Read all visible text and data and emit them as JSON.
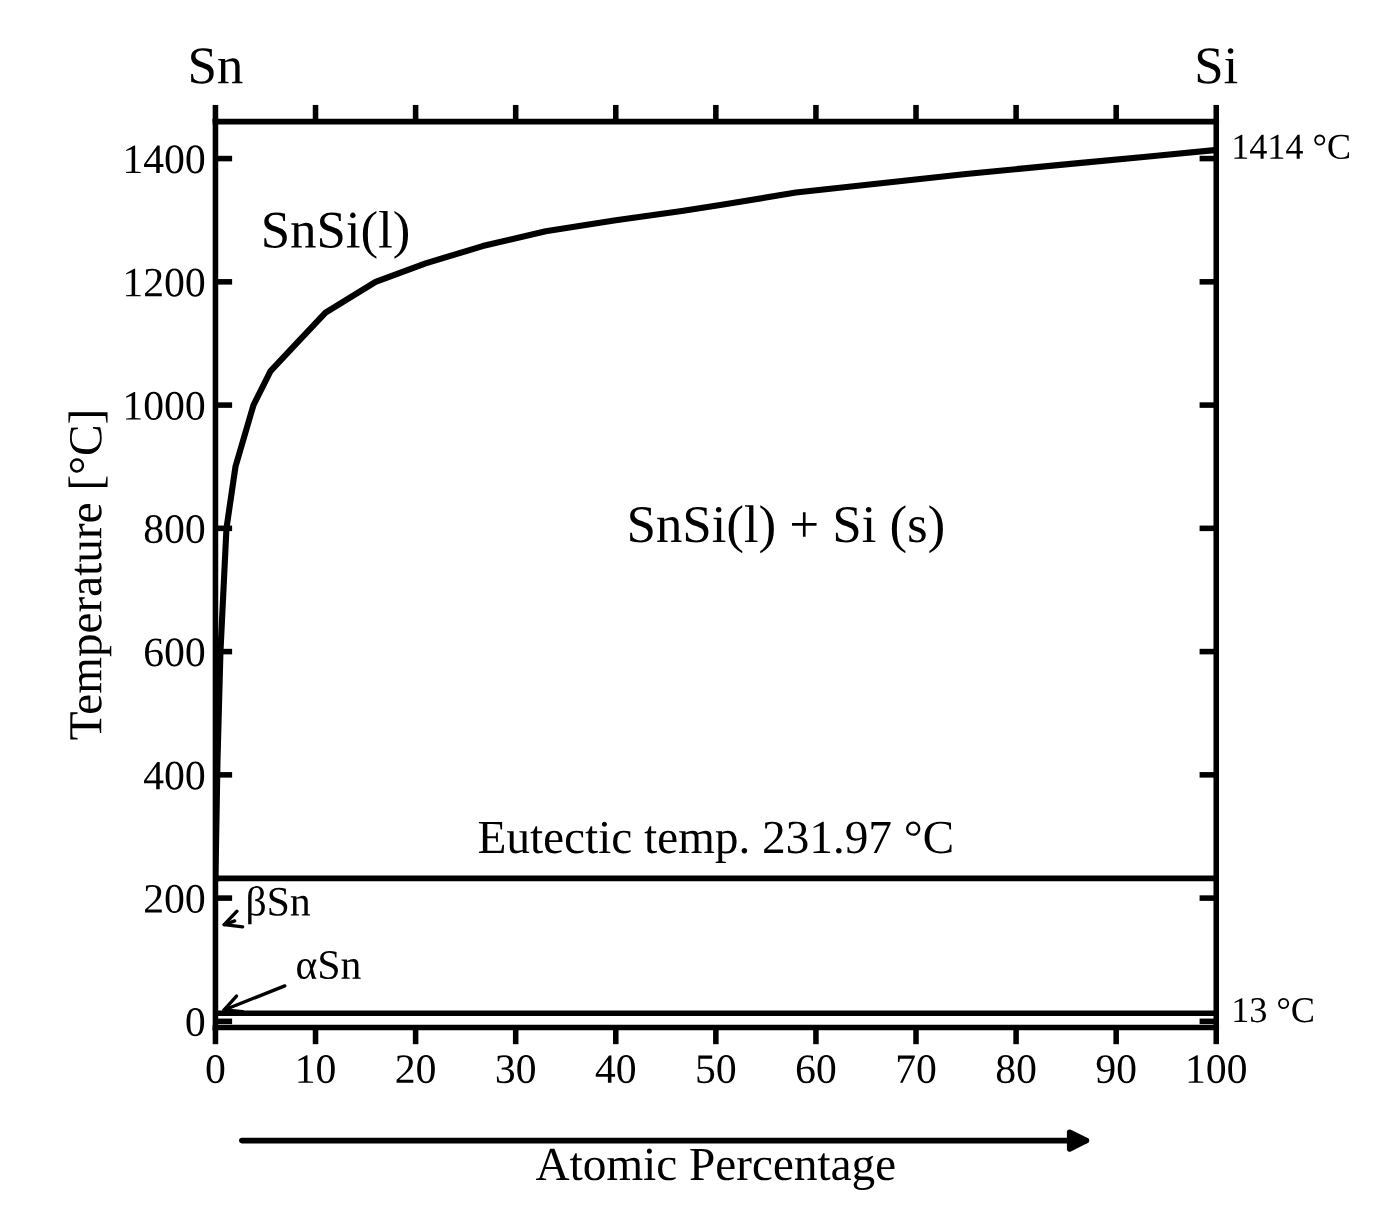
{
  "chart_data": {
    "type": "line",
    "xlabel": "Atomic Percentage",
    "ylabel": "Temperature [°C]",
    "x": [
      0,
      0.2,
      0.5,
      1.1,
      2,
      3.8,
      5.5,
      8.1,
      11,
      16,
      21,
      26.7,
      33,
      40,
      46.6,
      50.6,
      58,
      66.5,
      75,
      86.5,
      93,
      100
    ],
    "series": [
      {
        "color": "#000000",
        "values": [
          232,
          420,
          600,
          800,
          900,
          1000,
          1055,
          1100,
          1150,
          1200,
          1230,
          1258,
          1282,
          1300,
          1315,
          1325,
          1345,
          1360,
          1375,
          1393,
          1403,
          1414
        ]
      }
    ],
    "xlim": [
      0,
      100
    ],
    "xticks": [
      0,
      10,
      20,
      30,
      40,
      50,
      60,
      70,
      80,
      90,
      100
    ],
    "ylim": [
      -10,
      1460
    ],
    "yticks": [
      0,
      200,
      400,
      600,
      800,
      1000,
      1200,
      1400
    ],
    "grid": false,
    "legend": false,
    "marker": "none",
    "line_style": "solid",
    "ref_lines": [
      {
        "axis": "y",
        "value": 231.97,
        "label": "Eutectic temp. 231.97 °C",
        "color": "#000000"
      },
      {
        "axis": "y",
        "value": 13,
        "label": "13 °C",
        "color": "#000000"
      }
    ],
    "annotations": [
      "Sn",
      "Si",
      {
        "text": "1414 °C",
        "x": 100,
        "y": 1414
      },
      "SnSi(l)",
      "SnSi(l) + Si (s)",
      "βSn",
      {
        "text": "αSn",
        "x": 0,
        "y": 13
      }
    ]
  }
}
